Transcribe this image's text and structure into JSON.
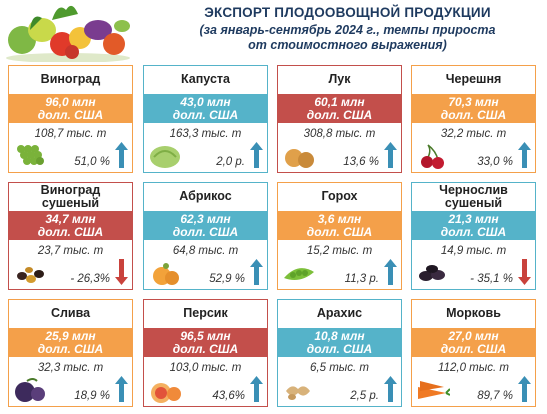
{
  "header": {
    "title": "ЭКСПОРТ ПЛОДООВОЩНОЙ ПРОДУКЦИИ",
    "subtitle_line1": "(за январь-сентябрь 2024 г., темпы прироста",
    "subtitle_line2": "от стоимостного выражения)"
  },
  "colors": {
    "orange": "#f4a04a",
    "teal": "#55b3c9",
    "red": "#c34f4b",
    "up_arrow": "#3a8fb5",
    "down_arrow": "#c9423c"
  },
  "cards": [
    {
      "name": "Виноград",
      "value": "96,0 млн",
      "unit": "долл. США",
      "volume": "108,7 тыс. т",
      "growth": "51,0 %",
      "direction": "up",
      "color": "orange",
      "icon": "grapes-icon"
    },
    {
      "name": "Капуста",
      "value": "43,0 млн",
      "unit": "долл. США",
      "volume": "163,3 тыс. т",
      "growth": "2,0 р.",
      "direction": "up",
      "color": "teal",
      "icon": "cabbage-icon"
    },
    {
      "name": "Лук",
      "value": "60,1 млн",
      "unit": "долл. США",
      "volume": "308,8 тыс. т",
      "growth": "13,6 %",
      "direction": "up",
      "color": "red",
      "icon": "onion-icon"
    },
    {
      "name": "Черешня",
      "value": "70,3 млн",
      "unit": "долл. США",
      "volume": "32,2 тыс. т",
      "growth": "33,0 %",
      "direction": "up",
      "color": "orange",
      "icon": "cherry-icon"
    },
    {
      "name": "Виноград сушеный",
      "value": "34,7 млн",
      "unit": "долл. США",
      "volume": "23,7 тыс. т",
      "growth": "- 26,3%",
      "direction": "down",
      "color": "red",
      "icon": "raisins-icon"
    },
    {
      "name": "Абрикос",
      "value": "62,3 млн",
      "unit": "долл. США",
      "volume": "64,8 тыс. т",
      "growth": "52,9 %",
      "direction": "up",
      "color": "teal",
      "icon": "apricot-icon"
    },
    {
      "name": "Горох",
      "value": "3,6 млн",
      "unit": "долл. США",
      "volume": "15,2 тыс. т",
      "growth": "11,3 р.",
      "direction": "up",
      "color": "orange",
      "icon": "peas-icon"
    },
    {
      "name": "Чернослив сушеный",
      "value": "21,3 млн",
      "unit": "долл. США",
      "volume": "14,9 тыс. т",
      "growth": "- 35,1 %",
      "direction": "down",
      "color": "teal",
      "icon": "prunes-icon"
    },
    {
      "name": "Слива",
      "value": "25,9 млн",
      "unit": "долл. США",
      "volume": "32,3 тыс. т",
      "growth": "18,9 %",
      "direction": "up",
      "color": "orange",
      "icon": "plum-icon"
    },
    {
      "name": "Персик",
      "value": "96,5 млн",
      "unit": "долл. США",
      "volume": "103,0 тыс. т",
      "growth": "43,6%",
      "direction": "up",
      "color": "red",
      "icon": "peach-icon"
    },
    {
      "name": "Арахис",
      "value": "10,8 млн",
      "unit": "долл. США",
      "volume": "6,5 тыс. т",
      "growth": "2,5 р.",
      "direction": "up",
      "color": "teal",
      "icon": "peanut-icon"
    },
    {
      "name": "Морковь",
      "value": "27,0 млн",
      "unit": "долл. США",
      "volume": "112,0 тыс. т",
      "growth": "89,7 %",
      "direction": "up",
      "color": "orange",
      "icon": "carrot-icon"
    }
  ]
}
